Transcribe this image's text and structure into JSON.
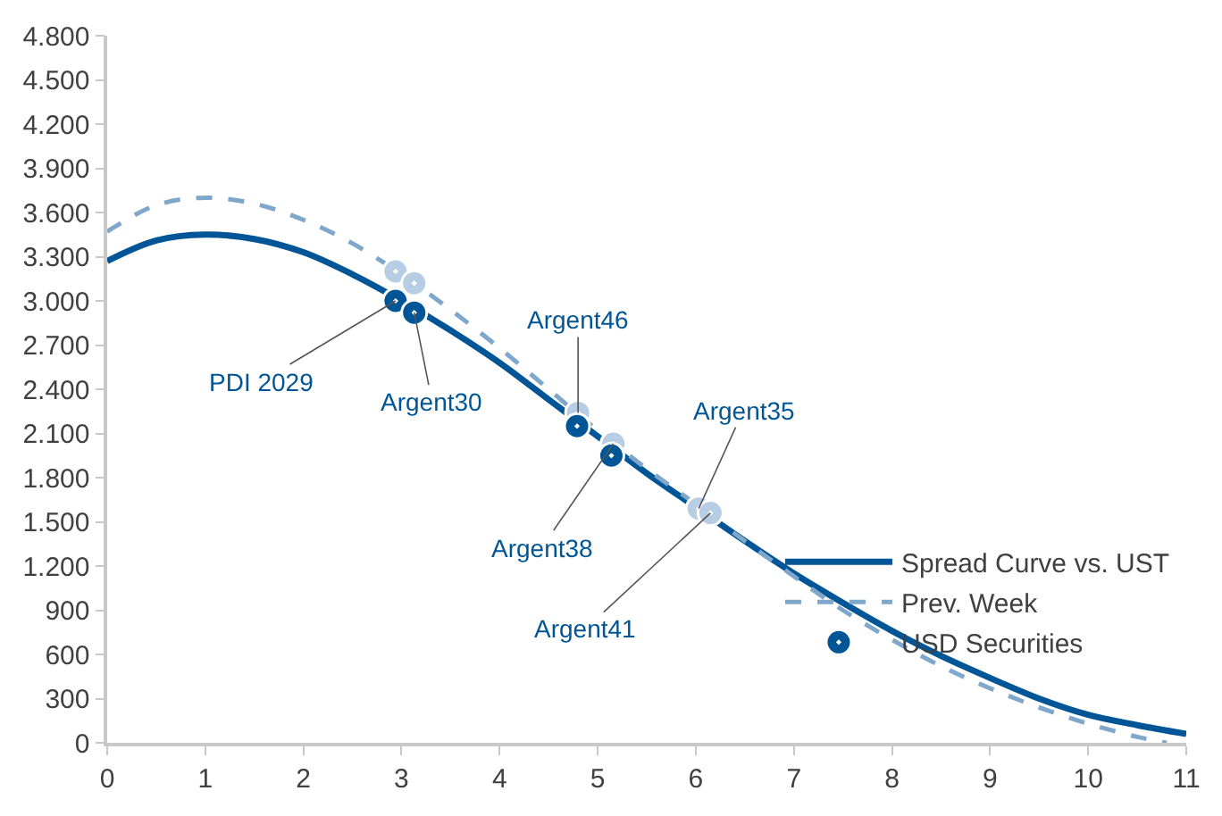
{
  "chart_data": {
    "type": "line",
    "series": [
      {
        "name": "Spread Curve vs. UST",
        "color": "#005596",
        "line_style": "solid",
        "marker": "none",
        "x": [
          0,
          0.5,
          1,
          1.5,
          2,
          2.5,
          3,
          3.5,
          4,
          4.5,
          5,
          5.5,
          6,
          6.5,
          7,
          7.5,
          8,
          8.5,
          9,
          9.5,
          10,
          10.5,
          11
        ],
        "values": [
          3270,
          3410,
          3450,
          3420,
          3330,
          3180,
          3000,
          2800,
          2580,
          2330,
          2080,
          1830,
          1600,
          1370,
          1150,
          950,
          760,
          590,
          440,
          300,
          190,
          120,
          60
        ]
      },
      {
        "name": "Prev. Week",
        "color": "#7fa7cb",
        "line_style": "dashed",
        "marker": "none",
        "x": [
          0,
          0.5,
          1,
          1.5,
          2,
          2.5,
          3,
          3.5,
          4,
          4.5,
          5,
          5.5,
          6,
          6.5,
          7,
          7.5,
          8,
          8.5,
          9,
          9.5,
          10,
          10.5,
          10.8
        ],
        "values": [
          3470,
          3650,
          3700,
          3660,
          3550,
          3390,
          3180,
          2940,
          2680,
          2400,
          2120,
          1860,
          1620,
          1370,
          1130,
          900,
          700,
          520,
          370,
          240,
          130,
          40,
          0
        ]
      },
      {
        "type": "scatter",
        "color": "#b7cde3",
        "marker": "circle",
        "x": [
          2.94,
          3.13,
          4.8,
          5.16,
          6.03,
          6.15
        ],
        "values": [
          3200,
          3120,
          2240,
          2030,
          1590,
          1560
        ]
      },
      {
        "name": "USD Securities",
        "type": "scatter",
        "color": "#005596",
        "marker": "circle",
        "x": [
          2.94,
          3.13,
          4.79,
          5.14
        ],
        "values": [
          3000,
          2920,
          2150,
          1950
        ]
      }
    ],
    "annotations": [
      {
        "text": "PDI 2029",
        "x": 2.94,
        "y": 3000
      },
      {
        "text": "Argent30",
        "x": 3.13,
        "y": 2920
      },
      {
        "text": "Argent46",
        "x": 4.8,
        "y": 2240
      },
      {
        "text": "Argent38",
        "x": 5.16,
        "y": 2030
      },
      {
        "text": "Argent35",
        "x": 6.03,
        "y": 1590
      },
      {
        "text": "Argent41",
        "x": 6.15,
        "y": 1560
      }
    ],
    "xlim": [
      0,
      11
    ],
    "xticks": [
      0,
      1,
      2,
      3,
      4,
      5,
      6,
      7,
      8,
      9,
      10,
      11
    ],
    "ylim": [
      0,
      4800
    ],
    "yticks": [
      0,
      300,
      600,
      900,
      {
        "value": 1200,
        "label": "1.200"
      },
      {
        "value": 1500,
        "label": "1.500"
      },
      {
        "value": 1800,
        "label": "1.800"
      },
      {
        "value": 2100,
        "label": "2.100"
      },
      {
        "value": 2400,
        "label": "2.400"
      },
      {
        "value": 2700,
        "label": "2.700"
      },
      {
        "value": 3000,
        "label": "3.000"
      },
      {
        "value": 3300,
        "label": "3.300"
      },
      {
        "value": 3600,
        "label": "3.600"
      },
      {
        "value": 3900,
        "label": "3.900"
      },
      {
        "value": 4200,
        "label": "4.200"
      },
      {
        "value": 4500,
        "label": "4.500"
      },
      {
        "value": 4800,
        "label": "4.800"
      }
    ],
    "grid": false,
    "legend": "bottom right"
  }
}
